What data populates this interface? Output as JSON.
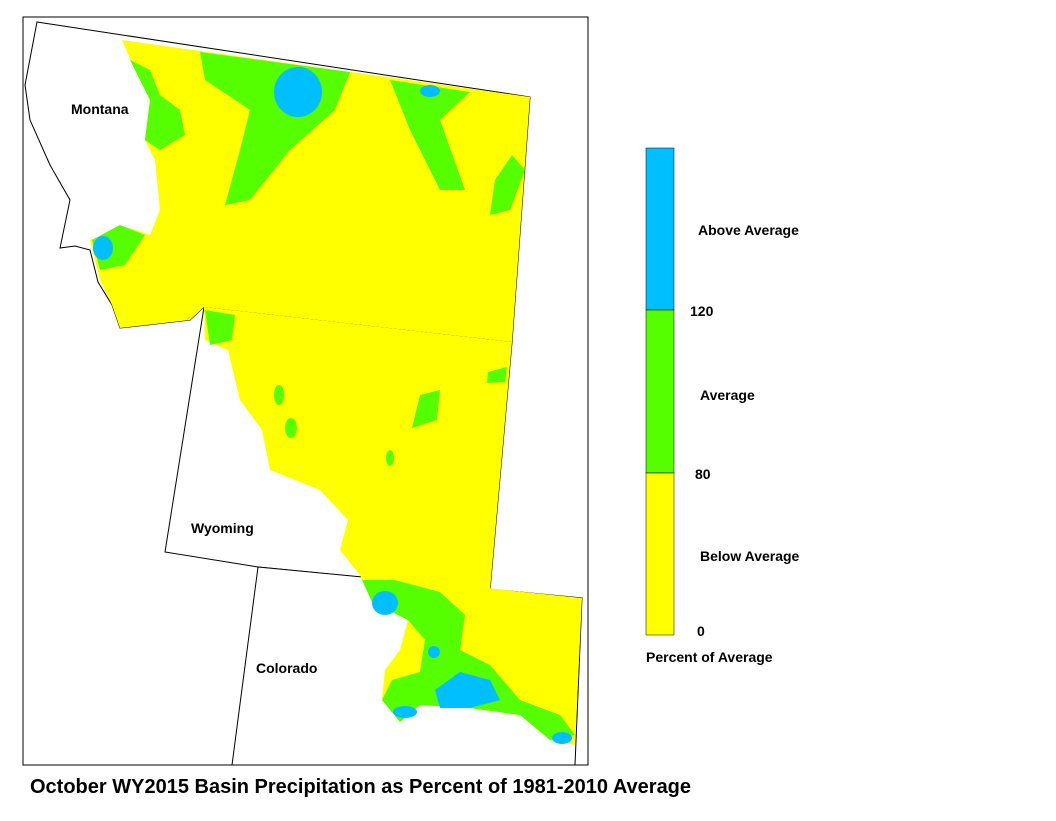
{
  "title": "October WY2015 Basin Precipitation as Percent of 1981-2010 Average",
  "states": [
    "Montana",
    "Wyoming",
    "Colorado"
  ],
  "legend": {
    "title": "Percent of Average",
    "classes": [
      {
        "label": "Above Average",
        "color": "#00bfff"
      },
      {
        "label": "Average",
        "color": "#55ff00"
      },
      {
        "label": "Below Average",
        "color": "#ffff00"
      }
    ],
    "breaks": [
      120,
      80,
      0
    ]
  }
}
